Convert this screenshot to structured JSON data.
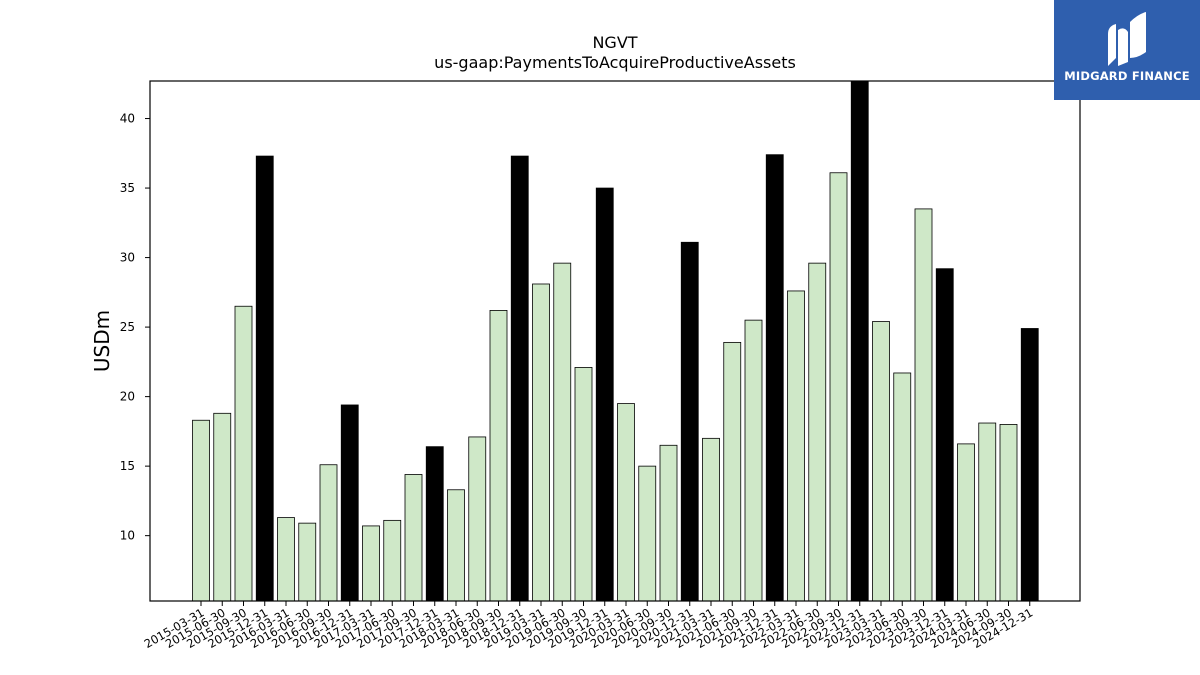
{
  "chart_data": {
    "type": "bar",
    "title": "NGVT",
    "subtitle": "us-gaap:PaymentsToAcquireProductiveAssets",
    "xlabel": "",
    "ylabel": "USDm",
    "ylim": [
      5.3,
      42.7
    ],
    "yticks": [
      10,
      15,
      20,
      25,
      30,
      35,
      40
    ],
    "grid": false,
    "colors": {
      "quarter": "#cfe8c8",
      "year_end": "#000000",
      "edge": "#000000"
    },
    "categories": [
      "2015-03-31",
      "2015-06-30",
      "2015-09-30",
      "2015-12-31",
      "2016-03-31",
      "2016-06-30",
      "2016-09-30",
      "2016-12-31",
      "2017-03-31",
      "2017-06-30",
      "2017-09-30",
      "2017-12-31",
      "2018-03-31",
      "2018-06-30",
      "2018-09-30",
      "2018-12-31",
      "2019-03-31",
      "2019-06-30",
      "2019-09-30",
      "2019-12-31",
      "2020-03-31",
      "2020-06-30",
      "2020-09-30",
      "2020-12-31",
      "2021-03-31",
      "2021-06-30",
      "2021-09-30",
      "2021-12-31",
      "2022-03-31",
      "2022-06-30",
      "2022-09-30",
      "2022-12-31",
      "2023-03-31",
      "2023-06-30",
      "2023-09-30",
      "2023-12-31",
      "2024-03-31",
      "2024-06-30",
      "2024-09-30",
      "2024-12-31"
    ],
    "values": [
      18.3,
      18.8,
      26.5,
      37.3,
      11.3,
      10.9,
      15.1,
      19.4,
      10.7,
      11.1,
      14.4,
      16.4,
      13.3,
      17.1,
      26.2,
      37.3,
      28.1,
      29.6,
      22.1,
      35.0,
      19.5,
      15.0,
      16.5,
      31.1,
      17.0,
      23.9,
      25.5,
      37.4,
      27.6,
      29.6,
      36.1,
      42.7,
      25.4,
      21.7,
      33.5,
      29.2,
      16.6,
      18.1,
      18.0,
      24.9
    ]
  },
  "logo": {
    "text": "MIDGARD FINANCE"
  }
}
